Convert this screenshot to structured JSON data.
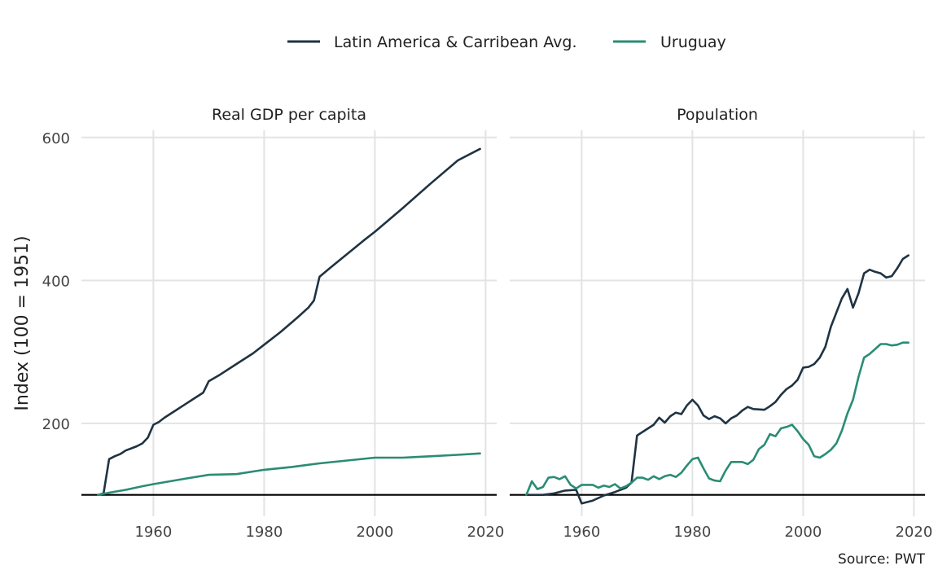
{
  "chart_data": {
    "type": "line",
    "ylabel": "Index (100 = 1951)",
    "caption": "Source: PWT",
    "legend": {
      "position": "top",
      "entries": [
        {
          "label": "Latin America & Carribean Avg.",
          "color": "#1f3342"
        },
        {
          "label": "Uruguay",
          "color": "#2a8c74"
        }
      ]
    },
    "ylim": [
      70,
      610
    ],
    "yticks": [
      200,
      400,
      600
    ],
    "xlim": [
      1947,
      2022
    ],
    "xticks": [
      1960,
      1980,
      2000,
      2020
    ],
    "reference_line": 100,
    "grid": true,
    "panels": [
      {
        "title": "Real GDP per capita",
        "series": [
          {
            "name": "Latin America & Carribean Avg.",
            "color": "#1f3342",
            "points": [
              [
                1950,
                100
              ],
              [
                1951,
                102
              ],
              [
                1952,
                150
              ],
              [
                1953,
                154
              ],
              [
                1954,
                157
              ],
              [
                1955,
                162
              ],
              [
                1956,
                165
              ],
              [
                1957,
                168
              ],
              [
                1958,
                172
              ],
              [
                1959,
                180
              ],
              [
                1960,
                198
              ],
              [
                1961,
                202
              ],
              [
                1962,
                208
              ],
              [
                1963,
                213
              ],
              [
                1964,
                218
              ],
              [
                1965,
                223
              ],
              [
                1966,
                228
              ],
              [
                1967,
                233
              ],
              [
                1968,
                238
              ],
              [
                1969,
                243
              ],
              [
                1970,
                259
              ],
              [
                1972,
                268
              ],
              [
                1975,
                283
              ],
              [
                1978,
                298
              ],
              [
                1980,
                310
              ],
              [
                1983,
                328
              ],
              [
                1986,
                348
              ],
              [
                1988,
                362
              ],
              [
                1989,
                372
              ],
              [
                1990,
                405
              ],
              [
                1992,
                418
              ],
              [
                1995,
                437
              ],
              [
                1998,
                456
              ],
              [
                2000,
                468
              ],
              [
                2005,
                501
              ],
              [
                2010,
                535
              ],
              [
                2015,
                568
              ],
              [
                2019,
                584
              ]
            ]
          },
          {
            "name": "Uruguay",
            "color": "#2a8c74",
            "points": [
              [
                1950,
                100
              ],
              [
                1952,
                103
              ],
              [
                1955,
                107
              ],
              [
                1958,
                112
              ],
              [
                1960,
                115
              ],
              [
                1963,
                119
              ],
              [
                1966,
                123
              ],
              [
                1970,
                128
              ],
              [
                1975,
                129
              ],
              [
                1980,
                135
              ],
              [
                1985,
                139
              ],
              [
                1990,
                144
              ],
              [
                1995,
                148
              ],
              [
                2000,
                152
              ],
              [
                2005,
                152
              ],
              [
                2010,
                154
              ],
              [
                2015,
                156
              ],
              [
                2019,
                158
              ]
            ]
          }
        ]
      },
      {
        "title": "Population",
        "series": [
          {
            "name": "Latin America & Carribean Avg.",
            "color": "#1f3342",
            "points": [
              [
                1950,
                100
              ],
              [
                1953,
                100
              ],
              [
                1955,
                102
              ],
              [
                1957,
                106
              ],
              [
                1959,
                107
              ],
              [
                1960,
                88
              ],
              [
                1962,
                92
              ],
              [
                1964,
                99
              ],
              [
                1966,
                104
              ],
              [
                1968,
                110
              ],
              [
                1969,
                117
              ],
              [
                1970,
                183
              ],
              [
                1971,
                188
              ],
              [
                1972,
                193
              ],
              [
                1973,
                198
              ],
              [
                1974,
                208
              ],
              [
                1975,
                201
              ],
              [
                1976,
                210
              ],
              [
                1977,
                215
              ],
              [
                1978,
                213
              ],
              [
                1979,
                225
              ],
              [
                1980,
                233
              ],
              [
                1981,
                225
              ],
              [
                1982,
                211
              ],
              [
                1983,
                206
              ],
              [
                1984,
                210
              ],
              [
                1985,
                207
              ],
              [
                1986,
                200
              ],
              [
                1987,
                207
              ],
              [
                1988,
                211
              ],
              [
                1989,
                218
              ],
              [
                1990,
                223
              ],
              [
                1991,
                220
              ],
              [
                1993,
                219
              ],
              [
                1994,
                224
              ],
              [
                1995,
                230
              ],
              [
                1996,
                240
              ],
              [
                1997,
                248
              ],
              [
                1998,
                253
              ],
              [
                1999,
                261
              ],
              [
                2000,
                278
              ],
              [
                2001,
                279
              ],
              [
                2002,
                283
              ],
              [
                2003,
                292
              ],
              [
                2004,
                307
              ],
              [
                2005,
                335
              ],
              [
                2006,
                355
              ],
              [
                2007,
                375
              ],
              [
                2008,
                388
              ],
              [
                2009,
                362
              ],
              [
                2010,
                382
              ],
              [
                2011,
                410
              ],
              [
                2012,
                415
              ],
              [
                2013,
                412
              ],
              [
                2014,
                410
              ],
              [
                2015,
                404
              ],
              [
                2016,
                406
              ],
              [
                2017,
                417
              ],
              [
                2018,
                430
              ],
              [
                2019,
                435
              ]
            ]
          },
          {
            "name": "Uruguay",
            "color": "#2a8c74",
            "points": [
              [
                1950,
                100
              ],
              [
                1951,
                119
              ],
              [
                1952,
                108
              ],
              [
                1953,
                111
              ],
              [
                1954,
                124
              ],
              [
                1955,
                125
              ],
              [
                1956,
                122
              ],
              [
                1957,
                126
              ],
              [
                1958,
                114
              ],
              [
                1959,
                109
              ],
              [
                1960,
                114
              ],
              [
                1962,
                114
              ],
              [
                1963,
                110
              ],
              [
                1964,
                113
              ],
              [
                1965,
                111
              ],
              [
                1966,
                115
              ],
              [
                1967,
                109
              ],
              [
                1968,
                112
              ],
              [
                1969,
                117
              ],
              [
                1970,
                124
              ],
              [
                1971,
                124
              ],
              [
                1972,
                121
              ],
              [
                1973,
                126
              ],
              [
                1974,
                122
              ],
              [
                1975,
                126
              ],
              [
                1976,
                128
              ],
              [
                1977,
                125
              ],
              [
                1978,
                131
              ],
              [
                1979,
                141
              ],
              [
                1980,
                150
              ],
              [
                1981,
                152
              ],
              [
                1982,
                137
              ],
              [
                1983,
                123
              ],
              [
                1984,
                120
              ],
              [
                1985,
                119
              ],
              [
                1986,
                134
              ],
              [
                1987,
                146
              ],
              [
                1988,
                146
              ],
              [
                1989,
                146
              ],
              [
                1990,
                143
              ],
              [
                1991,
                149
              ],
              [
                1992,
                164
              ],
              [
                1993,
                170
              ],
              [
                1994,
                185
              ],
              [
                1995,
                182
              ],
              [
                1996,
                193
              ],
              [
                1997,
                195
              ],
              [
                1998,
                198
              ],
              [
                1999,
                189
              ],
              [
                2000,
                178
              ],
              [
                2001,
                170
              ],
              [
                2002,
                154
              ],
              [
                2003,
                152
              ],
              [
                2004,
                157
              ],
              [
                2005,
                163
              ],
              [
                2006,
                172
              ],
              [
                2007,
                190
              ],
              [
                2008,
                214
              ],
              [
                2009,
                233
              ],
              [
                2010,
                265
              ],
              [
                2011,
                292
              ],
              [
                2012,
                297
              ],
              [
                2013,
                304
              ],
              [
                2014,
                311
              ],
              [
                2015,
                311
              ],
              [
                2016,
                309
              ],
              [
                2017,
                310
              ],
              [
                2018,
                313
              ],
              [
                2019,
                313
              ]
            ]
          }
        ]
      }
    ]
  }
}
